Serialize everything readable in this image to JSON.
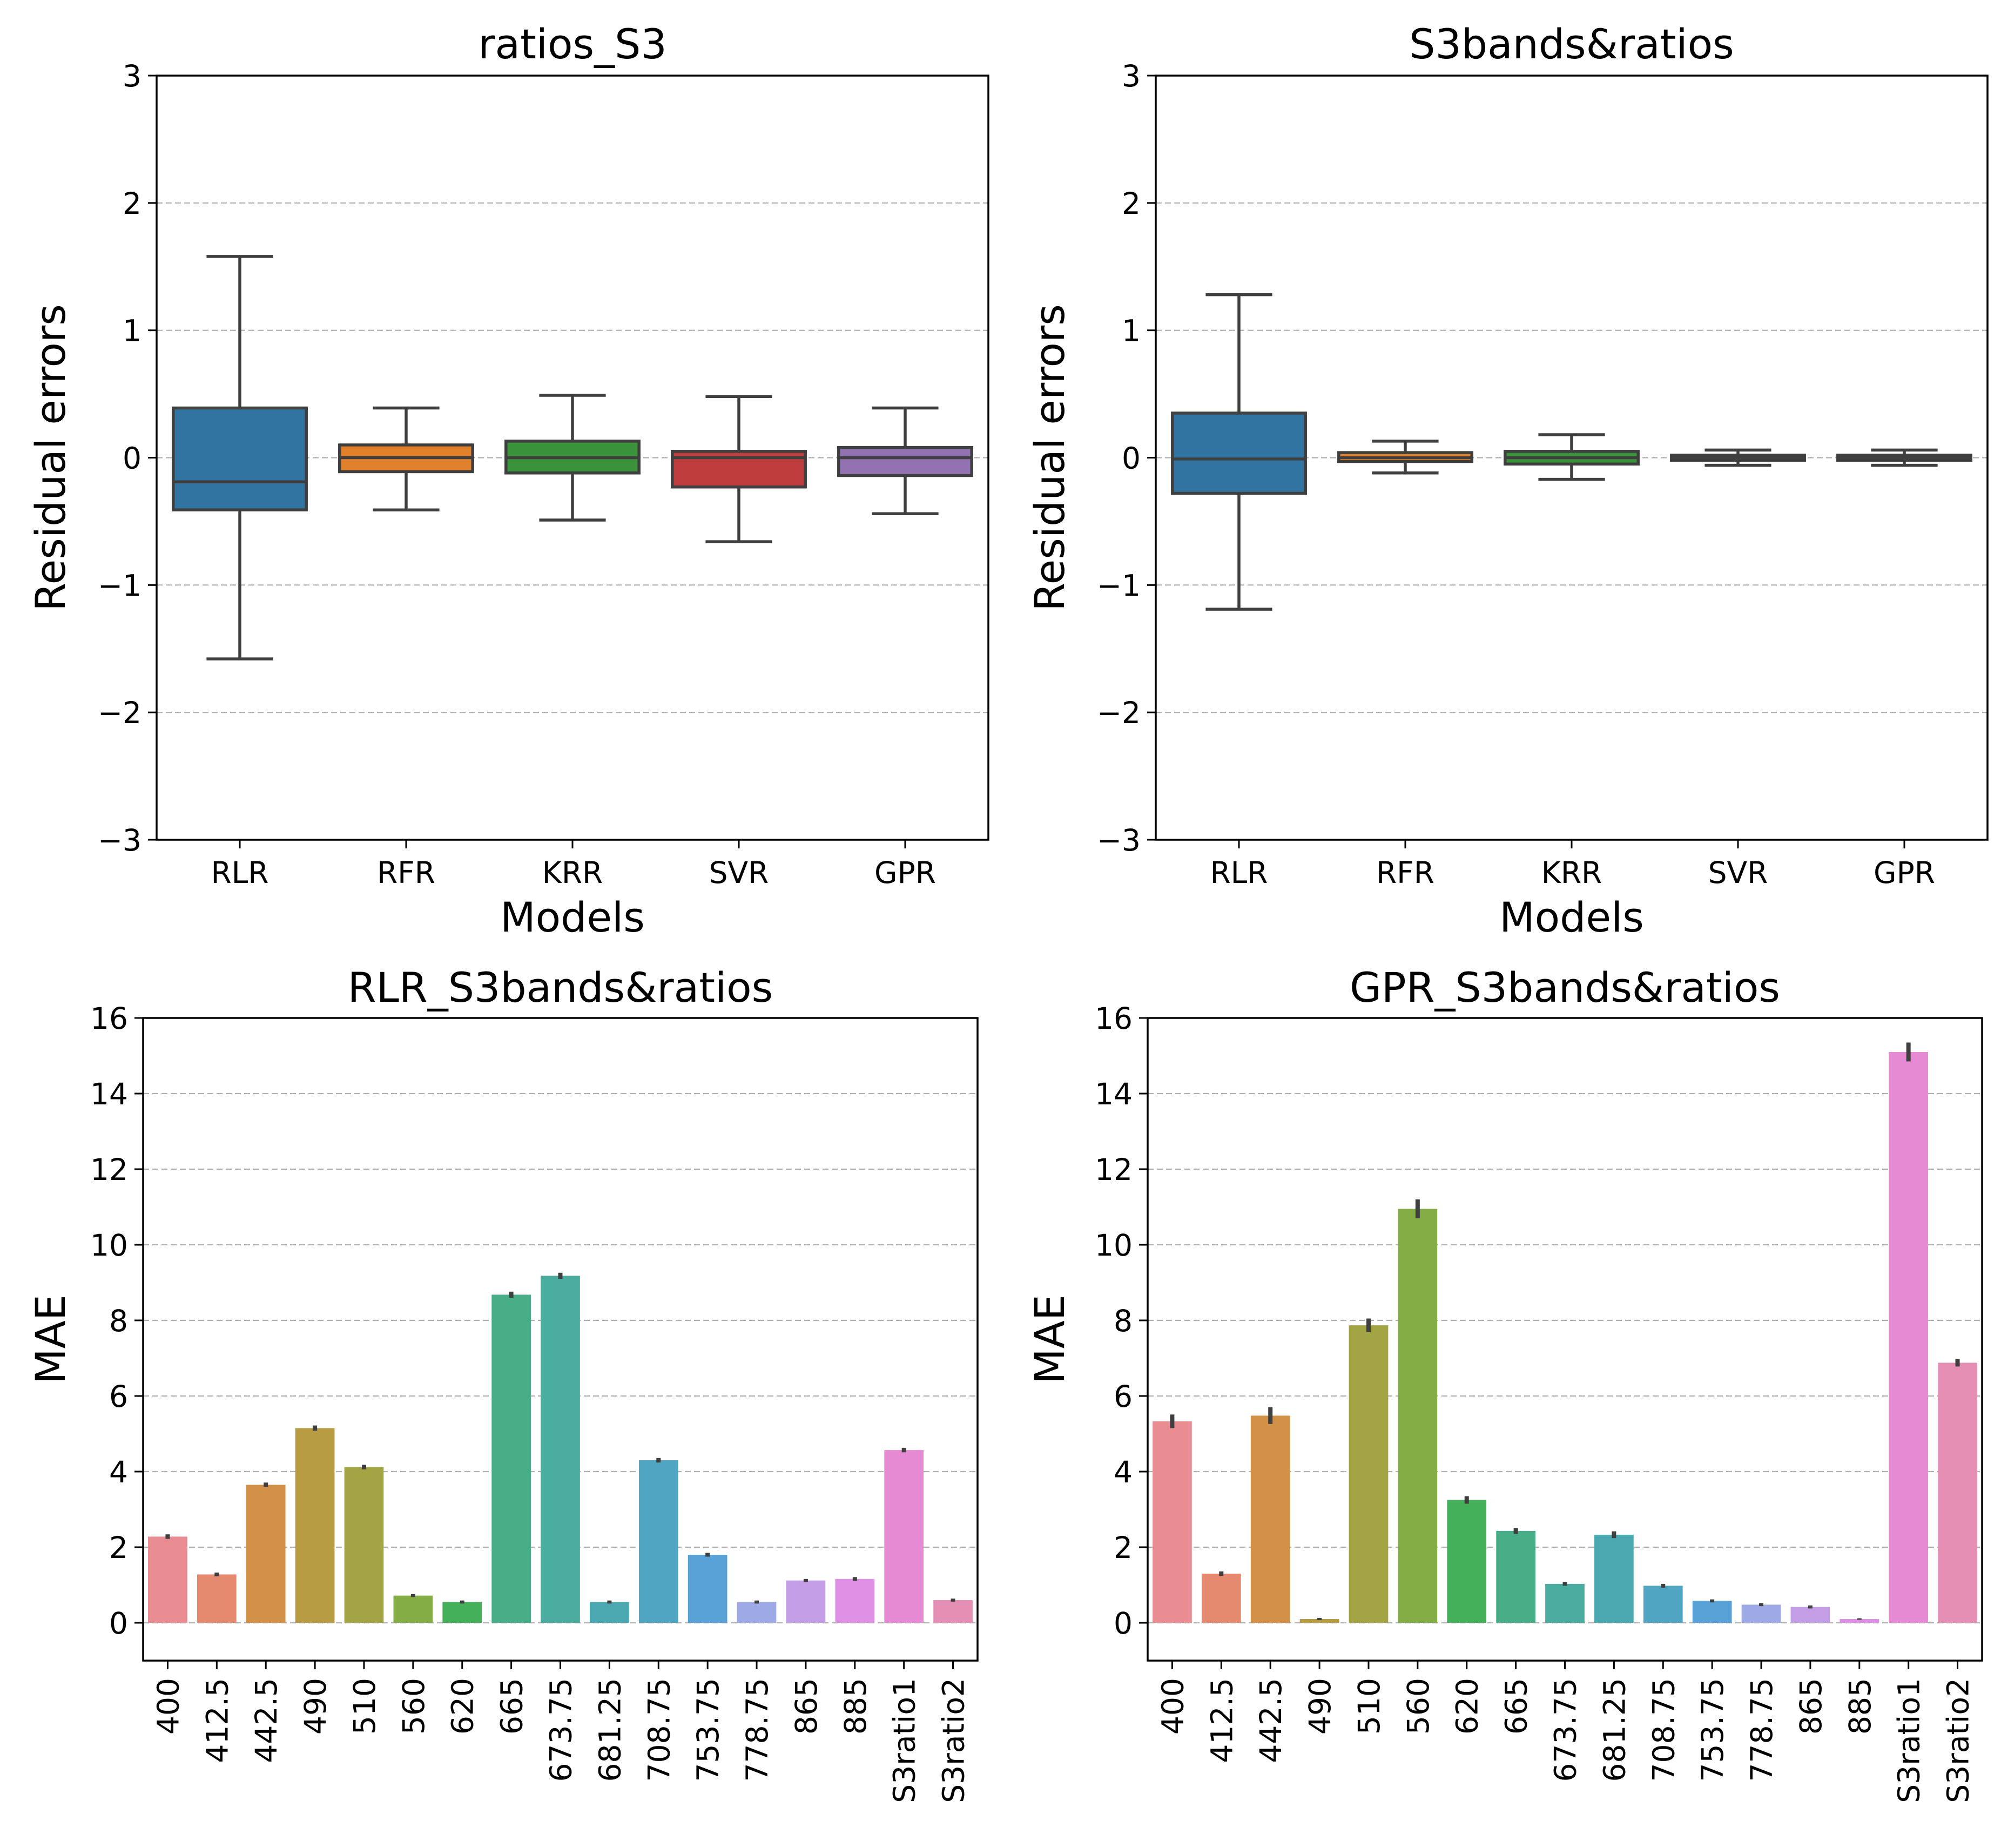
{
  "chart_data": [
    {
      "type": "box",
      "title": "ratios_S3",
      "xlabel": "Models",
      "ylabel": "Residual errors",
      "ylim": [
        -3,
        3
      ],
      "yticks": [
        -3,
        -2,
        -1,
        0,
        1,
        2,
        3
      ],
      "ytick_labels": [
        "−3",
        "−2",
        "−1",
        "0",
        "1",
        "2",
        "3"
      ],
      "grid": true,
      "categories": [
        "RLR",
        "RFR",
        "KRR",
        "SVR",
        "GPR"
      ],
      "colors": [
        "#3274a1",
        "#e1812c",
        "#3a923a",
        "#c03d3e",
        "#9372b2"
      ],
      "boxes": [
        {
          "whisker_low": -1.58,
          "q1": -0.41,
          "median": -0.19,
          "q3": 0.39,
          "whisker_high": 1.58
        },
        {
          "whisker_low": -0.41,
          "q1": -0.11,
          "median": 0.0,
          "q3": 0.1,
          "whisker_high": 0.39
        },
        {
          "whisker_low": -0.49,
          "q1": -0.12,
          "median": 0.0,
          "q3": 0.13,
          "whisker_high": 0.49
        },
        {
          "whisker_low": -0.66,
          "q1": -0.23,
          "median": 0.0,
          "q3": 0.05,
          "whisker_high": 0.48
        },
        {
          "whisker_low": -0.44,
          "q1": -0.14,
          "median": 0.0,
          "q3": 0.08,
          "whisker_high": 0.39
        }
      ]
    },
    {
      "type": "box",
      "title": "S3bands&ratios",
      "xlabel": "Models",
      "ylabel": "Residual errors",
      "ylim": [
        -3,
        3
      ],
      "yticks": [
        -3,
        -2,
        -1,
        0,
        1,
        2,
        3
      ],
      "ytick_labels": [
        "−3",
        "−2",
        "−1",
        "0",
        "1",
        "2",
        "3"
      ],
      "grid": true,
      "categories": [
        "RLR",
        "RFR",
        "KRR",
        "SVR",
        "GPR"
      ],
      "colors": [
        "#3274a1",
        "#e1812c",
        "#3a923a",
        "#c03d3e",
        "#9372b2"
      ],
      "boxes": [
        {
          "whisker_low": -1.19,
          "q1": -0.28,
          "median": -0.01,
          "q3": 0.35,
          "whisker_high": 1.28
        },
        {
          "whisker_low": -0.12,
          "q1": -0.03,
          "median": 0.0,
          "q3": 0.04,
          "whisker_high": 0.13
        },
        {
          "whisker_low": -0.17,
          "q1": -0.05,
          "median": 0.0,
          "q3": 0.05,
          "whisker_high": 0.18
        },
        {
          "whisker_low": -0.06,
          "q1": -0.02,
          "median": 0.0,
          "q3": 0.02,
          "whisker_high": 0.06
        },
        {
          "whisker_low": -0.06,
          "q1": -0.02,
          "median": 0.0,
          "q3": 0.02,
          "whisker_high": 0.06
        }
      ]
    },
    {
      "type": "bar",
      "title": "RLR_S3bands&ratios",
      "xlabel": "",
      "ylabel": "MAE",
      "ylim": [
        -1,
        16
      ],
      "yticks": [
        0,
        2,
        4,
        6,
        8,
        10,
        12,
        14,
        16
      ],
      "ytick_labels": [
        "0",
        "2",
        "4",
        "6",
        "8",
        "10",
        "12",
        "14",
        "16"
      ],
      "grid": true,
      "categories": [
        "400",
        "412.5",
        "442.5",
        "490",
        "510",
        "560",
        "620",
        "665",
        "673.75",
        "681.25",
        "708.75",
        "753.75",
        "778.75",
        "865",
        "885",
        "S3ratio1",
        "S3ratio2"
      ],
      "values": [
        2.28,
        1.28,
        3.65,
        5.15,
        4.12,
        0.72,
        0.55,
        8.68,
        9.18,
        0.55,
        4.3,
        1.8,
        0.55,
        1.12,
        1.16,
        4.57,
        0.6
      ],
      "errors": [
        0.06,
        0.05,
        0.06,
        0.07,
        0.06,
        0.04,
        0.04,
        0.08,
        0.08,
        0.04,
        0.06,
        0.05,
        0.04,
        0.04,
        0.05,
        0.06,
        0.04
      ],
      "colors": [
        "#e98d93",
        "#e58a6e",
        "#d39147",
        "#b89c44",
        "#a3a545",
        "#84ae45",
        "#45b05a",
        "#47ae87",
        "#49ac9e",
        "#4aa9b0",
        "#4fa5c2",
        "#59a2d8",
        "#9eaae6",
        "#c39ee7",
        "#de90e4",
        "#e68ad3",
        "#e58fb5"
      ]
    },
    {
      "type": "bar",
      "title": "GPR_S3bands&ratios",
      "xlabel": "",
      "ylabel": "MAE",
      "ylim": [
        -1,
        16
      ],
      "yticks": [
        0,
        2,
        4,
        6,
        8,
        10,
        12,
        14,
        16
      ],
      "ytick_labels": [
        "0",
        "2",
        "4",
        "6",
        "8",
        "10",
        "12",
        "14",
        "16"
      ],
      "grid": true,
      "categories": [
        "400",
        "412.5",
        "442.5",
        "490",
        "510",
        "560",
        "620",
        "665",
        "673.75",
        "681.25",
        "708.75",
        "753.75",
        "778.75",
        "865",
        "885",
        "S3ratio1",
        "S3ratio2"
      ],
      "values": [
        5.33,
        1.3,
        5.48,
        0.1,
        7.87,
        10.95,
        3.25,
        2.43,
        1.03,
        2.33,
        0.98,
        0.58,
        0.48,
        0.42,
        0.1,
        15.1,
        6.88
      ],
      "errors": [
        0.18,
        0.06,
        0.22,
        0.03,
        0.18,
        0.25,
        0.1,
        0.08,
        0.05,
        0.09,
        0.05,
        0.04,
        0.04,
        0.04,
        0.02,
        0.25,
        0.1
      ],
      "colors": [
        "#e98d93",
        "#e58a6e",
        "#d39147",
        "#b89c44",
        "#a3a545",
        "#84ae45",
        "#45b05a",
        "#47ae87",
        "#49ac9e",
        "#4aa9b0",
        "#4fa5c2",
        "#59a2d8",
        "#9eaae6",
        "#c39ee7",
        "#de90e4",
        "#e68ad3",
        "#e58fb5"
      ]
    }
  ]
}
